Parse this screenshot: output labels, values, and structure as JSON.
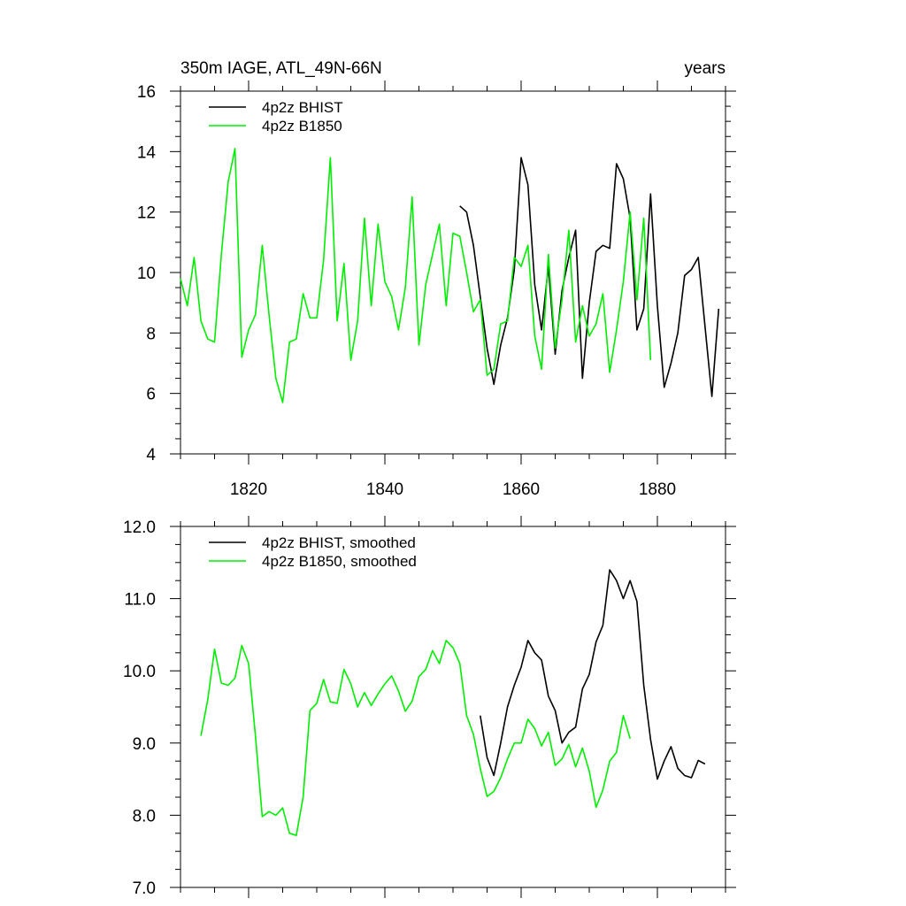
{
  "chart_data": [
    {
      "type": "line",
      "title_left": "350m IAGE, ATL_49N-66N",
      "title_right": "years",
      "xlabel": "",
      "ylabel": "",
      "xlim": [
        1810,
        1890
      ],
      "ylim": [
        4,
        16
      ],
      "xticks": [
        1820,
        1840,
        1860,
        1880
      ],
      "xtick_labels": [
        "1820",
        "1840",
        "1860",
        "1880"
      ],
      "yticks": [
        4,
        6,
        8,
        10,
        12,
        14,
        16
      ],
      "ytick_labels": [
        "4",
        "6",
        "8",
        "10",
        "12",
        "14",
        "16"
      ],
      "legend": "top-left",
      "series": [
        {
          "name": "4p2z BHIST",
          "color": "#000000",
          "x": [
            1851,
            1852,
            1853,
            1854,
            1855,
            1856,
            1857,
            1858,
            1859,
            1860,
            1861,
            1862,
            1863,
            1864,
            1865,
            1866,
            1867,
            1868,
            1869,
            1870,
            1871,
            1872,
            1873,
            1874,
            1875,
            1876,
            1877,
            1878,
            1879,
            1880,
            1881,
            1882,
            1883,
            1884,
            1885,
            1886,
            1887,
            1888,
            1889
          ],
          "values": [
            12.2,
            12.0,
            10.9,
            9.2,
            7.5,
            6.3,
            7.6,
            8.5,
            10.1,
            13.8,
            12.9,
            9.6,
            8.1,
            10.2,
            7.3,
            9.4,
            10.5,
            11.4,
            6.5,
            9.0,
            10.7,
            10.9,
            10.8,
            13.6,
            13.1,
            11.8,
            8.1,
            8.8,
            12.6,
            8.9,
            6.2,
            7.0,
            8.0,
            9.9,
            10.1,
            10.5,
            8.2,
            5.9,
            8.8
          ]
        },
        {
          "name": "4p2z B1850",
          "color": "#00ee00",
          "x": [
            1810,
            1811,
            1812,
            1813,
            1814,
            1815,
            1816,
            1817,
            1818,
            1819,
            1820,
            1821,
            1822,
            1823,
            1824,
            1825,
            1826,
            1827,
            1828,
            1829,
            1830,
            1831,
            1832,
            1833,
            1834,
            1835,
            1836,
            1837,
            1838,
            1839,
            1840,
            1841,
            1842,
            1843,
            1844,
            1845,
            1846,
            1847,
            1848,
            1849,
            1850,
            1851,
            1852,
            1853,
            1854,
            1855,
            1856,
            1857,
            1858,
            1859,
            1860,
            1861,
            1862,
            1863,
            1864,
            1865,
            1866,
            1867,
            1868,
            1869,
            1870,
            1871,
            1872,
            1873,
            1874,
            1875,
            1876,
            1877,
            1878,
            1879
          ],
          "values": [
            9.8,
            8.9,
            10.5,
            8.4,
            7.8,
            7.7,
            10.6,
            13.0,
            14.1,
            7.2,
            8.1,
            8.6,
            10.9,
            8.6,
            6.5,
            5.7,
            7.7,
            7.8,
            9.3,
            8.5,
            8.5,
            10.4,
            13.8,
            8.4,
            10.3,
            7.1,
            8.4,
            11.8,
            8.9,
            11.6,
            9.7,
            9.2,
            8.1,
            9.5,
            12.5,
            7.6,
            9.6,
            10.6,
            11.6,
            8.9,
            11.3,
            11.2,
            10.0,
            8.7,
            9.1,
            6.6,
            6.8,
            8.3,
            8.4,
            10.5,
            10.2,
            10.9,
            7.9,
            6.8,
            10.6,
            7.5,
            9.1,
            11.4,
            7.7,
            8.9,
            7.9,
            8.3,
            9.3,
            6.7,
            8.1,
            9.7,
            12.0,
            9.1,
            11.8,
            7.1
          ]
        }
      ]
    },
    {
      "type": "line",
      "title_left": "",
      "title_right": "",
      "xlabel": "",
      "ylabel": "",
      "xlim": [
        1810,
        1890
      ],
      "ylim": [
        7.0,
        12.0
      ],
      "xticks": [
        1820,
        1840,
        1860,
        1880
      ],
      "xtick_labels": [],
      "yticks": [
        7.0,
        8.0,
        9.0,
        10.0,
        11.0,
        12.0
      ],
      "ytick_labels": [
        "7.0",
        "8.0",
        "9.0",
        "10.0",
        "11.0",
        "12.0"
      ],
      "legend": "top-left",
      "series": [
        {
          "name": "4p2z BHIST, smoothed",
          "color": "#000000",
          "x": [
            1854,
            1855,
            1856,
            1857,
            1858,
            1859,
            1860,
            1861,
            1862,
            1863,
            1864,
            1865,
            1866,
            1867,
            1868,
            1869,
            1870,
            1871,
            1872,
            1873,
            1874,
            1875,
            1876,
            1877,
            1878,
            1879,
            1880,
            1881,
            1882,
            1883,
            1884,
            1885,
            1886,
            1887
          ],
          "values": [
            9.38,
            8.8,
            8.55,
            9.0,
            9.5,
            9.8,
            10.05,
            10.42,
            10.25,
            10.15,
            9.65,
            9.45,
            9.0,
            9.15,
            9.22,
            9.75,
            9.95,
            10.4,
            10.63,
            11.4,
            11.25,
            11.0,
            11.25,
            10.96,
            9.8,
            9.05,
            8.5,
            8.75,
            8.95,
            8.65,
            8.55,
            8.52,
            8.76,
            8.71
          ]
        },
        {
          "name": "4p2z B1850, smoothed",
          "color": "#00ee00",
          "x": [
            1813,
            1814,
            1815,
            1816,
            1817,
            1818,
            1819,
            1820,
            1821,
            1822,
            1823,
            1824,
            1825,
            1826,
            1827,
            1828,
            1829,
            1830,
            1831,
            1832,
            1833,
            1834,
            1835,
            1836,
            1837,
            1838,
            1839,
            1840,
            1841,
            1842,
            1843,
            1844,
            1845,
            1846,
            1847,
            1848,
            1849,
            1850,
            1851,
            1852,
            1853,
            1854,
            1855,
            1856,
            1857,
            1858,
            1859,
            1860,
            1861,
            1862,
            1863,
            1864,
            1865,
            1866,
            1867,
            1868,
            1869,
            1870,
            1871,
            1872,
            1873,
            1874,
            1875,
            1876,
            1877
          ],
          "values": [
            9.1,
            9.6,
            10.3,
            9.83,
            9.8,
            9.9,
            10.35,
            10.1,
            9.1,
            7.98,
            8.05,
            8.0,
            8.1,
            7.75,
            7.72,
            8.25,
            9.45,
            9.55,
            9.88,
            9.57,
            9.55,
            10.02,
            9.82,
            9.5,
            9.7,
            9.52,
            9.68,
            9.82,
            9.93,
            9.72,
            9.44,
            9.58,
            9.92,
            10.02,
            10.28,
            10.1,
            10.42,
            10.32,
            10.1,
            9.38,
            9.12,
            8.65,
            8.26,
            8.33,
            8.52,
            8.78,
            9.0,
            9.0,
            9.33,
            9.2,
            8.96,
            9.15,
            8.69,
            8.78,
            8.98,
            8.67,
            8.93,
            8.61,
            8.11,
            8.35,
            8.75,
            8.87,
            9.38,
            9.06,
            null
          ]
        }
      ]
    }
  ]
}
